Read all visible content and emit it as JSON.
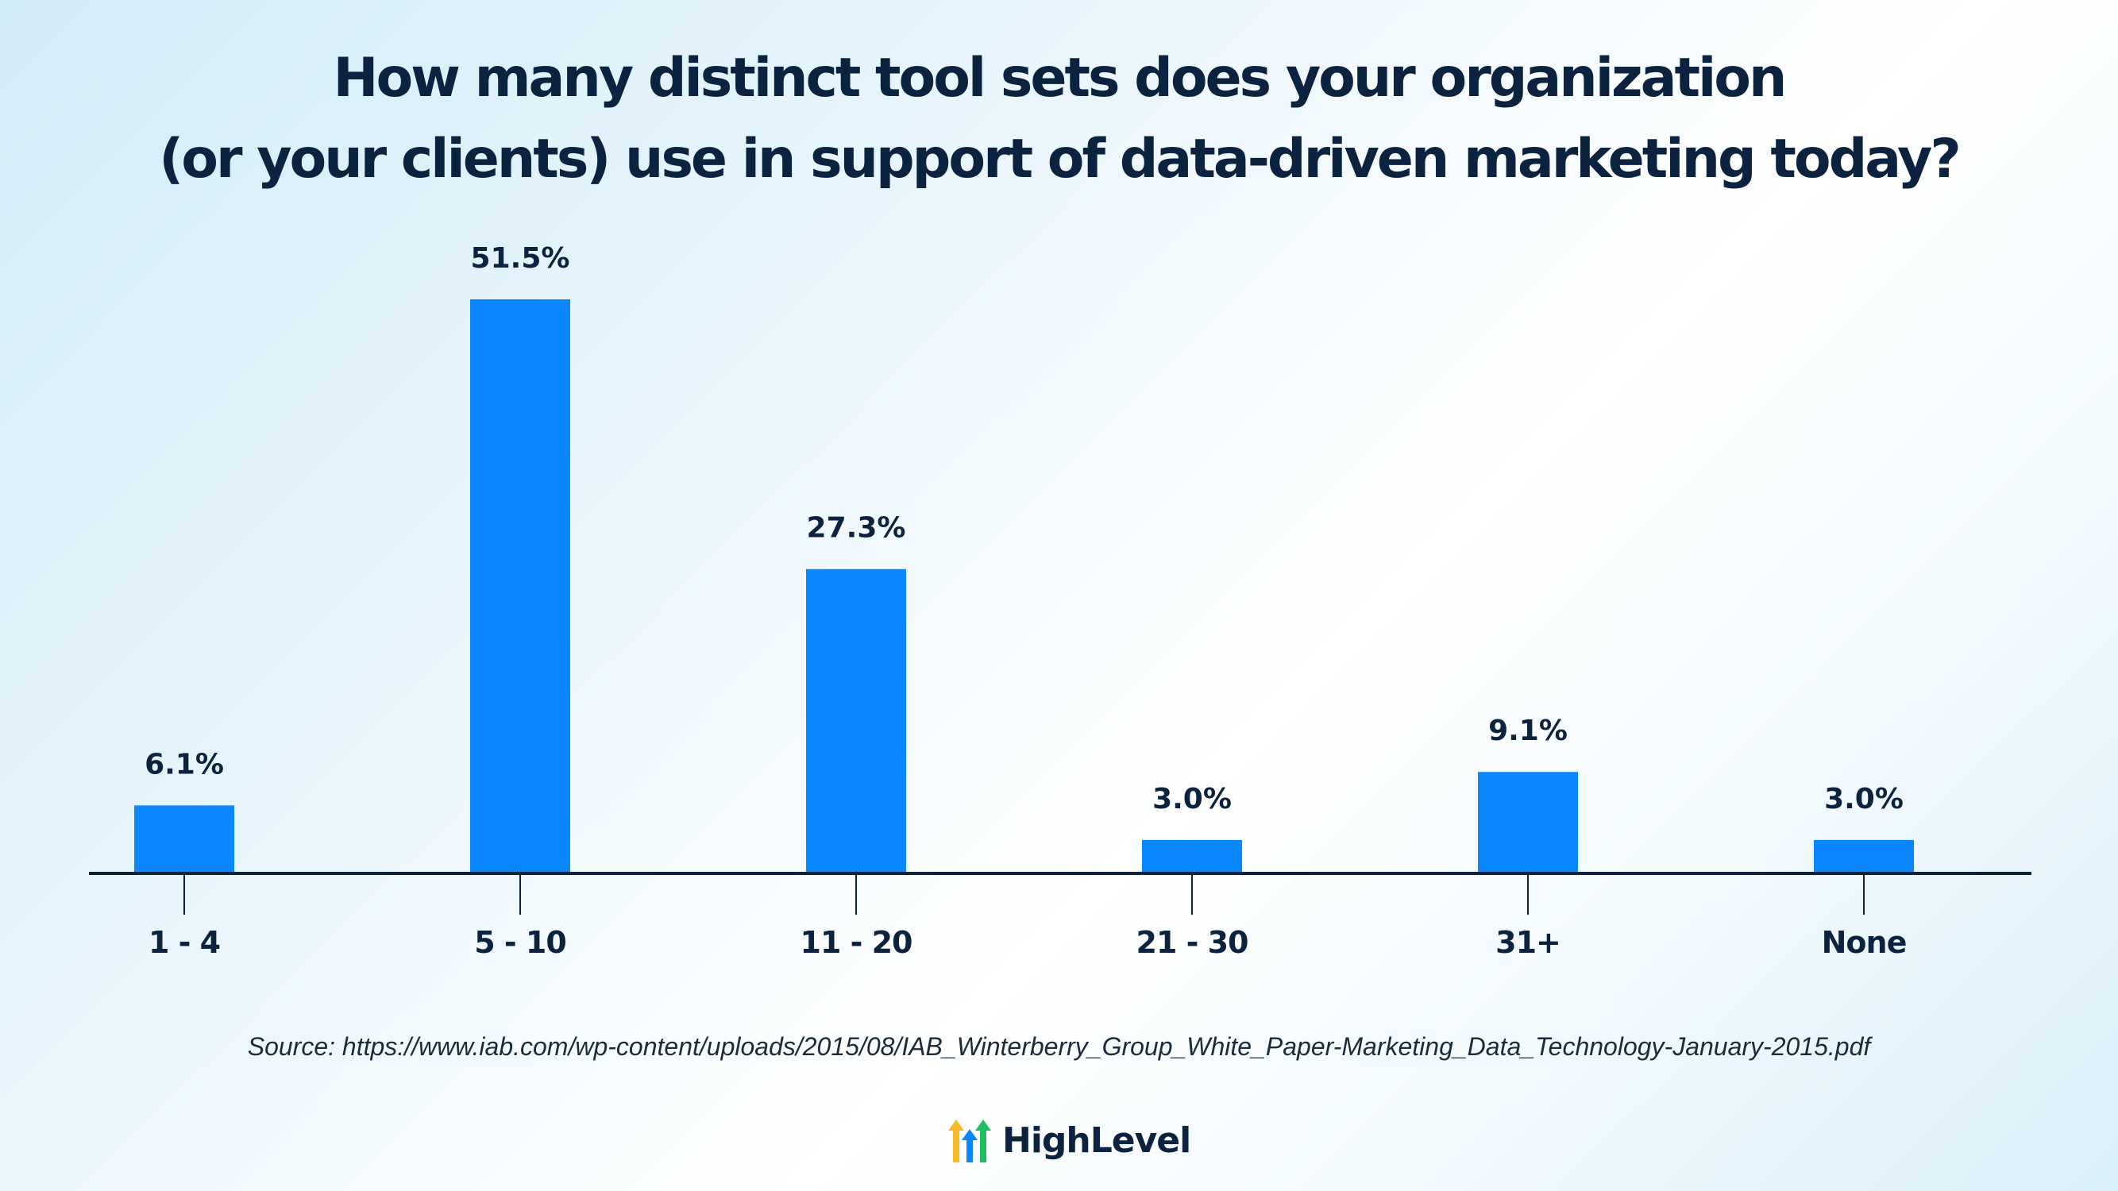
{
  "chart_data": {
    "type": "bar",
    "title_lines": [
      "How many distinct tool sets does your organization",
      "(or your clients) use in support of data-driven marketing today?"
    ],
    "categories": [
      "1 - 4",
      "5 - 10",
      "11 - 20",
      "21 - 30",
      "31+",
      "None"
    ],
    "values": [
      6.1,
      51.5,
      27.3,
      3.0,
      9.1,
      3.0
    ],
    "data_labels": [
      "6.1%",
      "51.5%",
      "27.3%",
      "3.0%",
      "9.1%",
      "3.0%"
    ],
    "ylim": [
      0,
      55
    ],
    "grid": false,
    "legend": "none",
    "bar_color": "#0a87ff",
    "axis_color": "#0c2340"
  },
  "source": "Source: https://www.iab.com/wp-content/uploads/2015/08/IAB_Winterberry_Group_White_Paper-Marketing_Data_Technology-January-2015.pdf",
  "brand": {
    "name": "HighLevel",
    "icon": "highlevel-arrows-logo",
    "colors": [
      "#f7b924",
      "#1fbf5f",
      "#0a87ff"
    ]
  }
}
